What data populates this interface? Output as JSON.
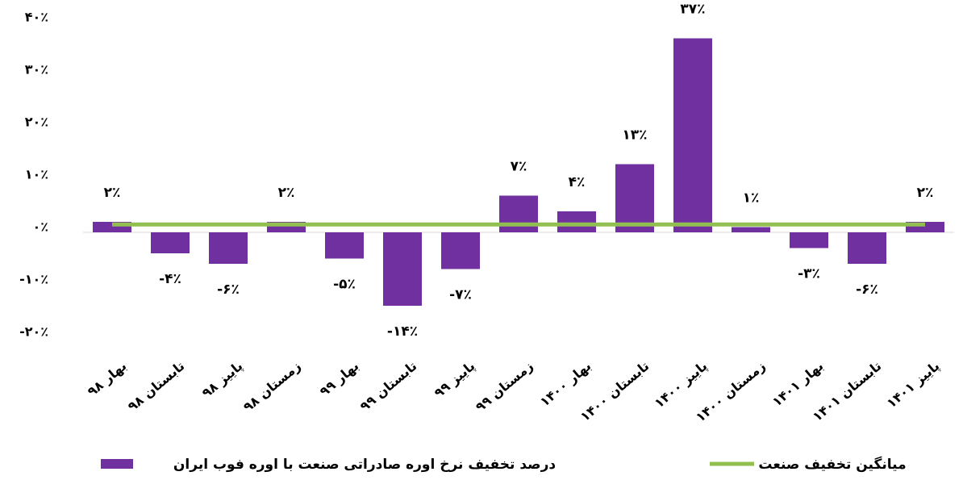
{
  "chart_data": {
    "type": "bar",
    "categories": [
      "بهار ۹۸",
      "تابستان ۹۸",
      "پاییز ۹۸",
      "زمستان ۹۸",
      "بهار ۹۹",
      "تابستان ۹۹",
      "پاییز ۹۹",
      "زمستان ۹۹",
      "بهار ۱۴۰۰",
      "تابستان ۱۴۰۰",
      "پاییز ۱۴۰۰",
      "زمستان ۱۴۰۰",
      "بهار ۱۴۰۱",
      "تابستان ۱۴۰۱",
      "پاییز ۱۴۰۱"
    ],
    "series": [
      {
        "name": "درصد تخفیف نرخ اوره صادراتی صنعت با اوره فوب ایران",
        "type": "bar",
        "color": "#7030a0",
        "values": [
          2,
          -4,
          -6,
          2,
          -5,
          -14,
          -7,
          7,
          4,
          13,
          37,
          1,
          -3,
          -6,
          2
        ],
        "value_labels": [
          "۲٪",
          "-۴٪",
          "-۶٪",
          "۲٪",
          "-۵٪",
          "-۱۴٪",
          "-۷٪",
          "۷٪",
          "۴٪",
          "۱۳٪",
          "۳۷٪",
          "۱٪",
          "-۳٪",
          "-۶٪",
          "۲٪"
        ]
      },
      {
        "name": "میانگین تخفیف صنعت",
        "type": "line",
        "color": "#92c050",
        "values": [
          1.5,
          1.5,
          1.5,
          1.5,
          1.5,
          1.5,
          1.5,
          1.5,
          1.5,
          1.5,
          1.5,
          1.5,
          1.5,
          1.5,
          1.5
        ]
      }
    ],
    "ylim": [
      -20,
      40
    ],
    "yticks": [
      {
        "value": -20,
        "label": "-۲۰٪"
      },
      {
        "value": -10,
        "label": "-۱۰٪"
      },
      {
        "value": 0,
        "label": "۰٪"
      },
      {
        "value": 10,
        "label": "۱۰٪"
      },
      {
        "value": 20,
        "label": "۲۰٪"
      },
      {
        "value": 30,
        "label": "۳۰٪"
      },
      {
        "value": 40,
        "label": "۴۰٪"
      }
    ],
    "grid": false
  }
}
